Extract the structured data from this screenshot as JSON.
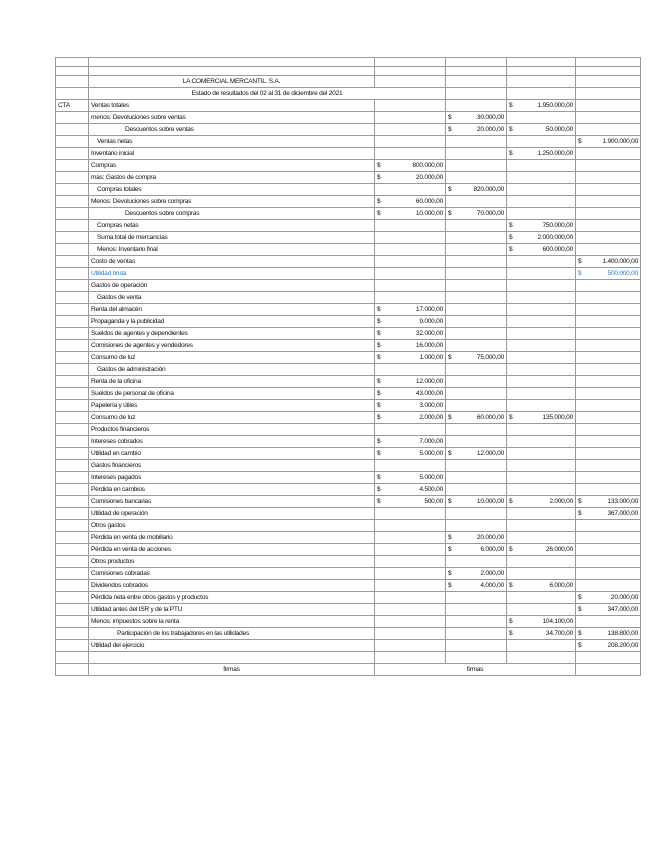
{
  "title": "LA COMERCIAL MERCANTIL. S.A.",
  "subtitle": "Estado de resultados del 02 al 31 de diciembre del 2021",
  "cta_label": "CTA",
  "signature_label": "firmas",
  "accent_color": "#2f7fd0",
  "rows": [
    {
      "label": "Ventas totales",
      "ind": 0,
      "v": [
        "",
        "",
        "1.950.000,00",
        ""
      ]
    },
    {
      "label": "menos: Devoluciones sobre ventas",
      "ind": 0,
      "v": [
        "",
        "30.000,00",
        "",
        ""
      ]
    },
    {
      "label": "Descuentos sobre ventas",
      "ind": 3,
      "v": [
        "",
        "20.000,00",
        "50.000,00",
        ""
      ]
    },
    {
      "label": "Ventas netas",
      "ind": 1,
      "v": [
        "",
        "",
        "",
        "1.900.000,00"
      ]
    },
    {
      "label": "Inventario inicial",
      "ind": 0,
      "v": [
        "",
        "",
        "1.250.000,00",
        ""
      ]
    },
    {
      "label": "Compras",
      "ind": 0,
      "v": [
        "800.000,00",
        "",
        "",
        ""
      ]
    },
    {
      "label": "mas: Gastos de compra",
      "ind": 0,
      "v": [
        "20.000,00",
        "",
        "",
        ""
      ]
    },
    {
      "label": "Compras totales",
      "ind": 1,
      "v": [
        "",
        "820.000,00",
        "",
        ""
      ]
    },
    {
      "label": "Menos: Devoluciones sobre compras",
      "ind": 0,
      "v": [
        "60.000,00",
        "",
        "",
        ""
      ]
    },
    {
      "label": "Descuentos sobre compras",
      "ind": 3,
      "v": [
        "10.000,00",
        "70.000,00",
        "",
        ""
      ]
    },
    {
      "label": "Compras netas",
      "ind": 1,
      "v": [
        "",
        "",
        "750.000,00",
        ""
      ]
    },
    {
      "label": "Suma total de mercancías",
      "ind": 1,
      "v": [
        "",
        "",
        "2.000.000,00",
        ""
      ]
    },
    {
      "label": "Menos: Inventario final",
      "ind": 1,
      "v": [
        "",
        "",
        "600.000,00",
        ""
      ]
    },
    {
      "label": "Costo de ventas",
      "ind": 0,
      "v": [
        "",
        "",
        "",
        "1.400.000,00"
      ]
    },
    {
      "label": "Utilidad bruta",
      "ind": 0,
      "blue": true,
      "v": [
        "",
        "",
        "",
        "500.000,00"
      ]
    },
    {
      "label": "Gastos de operación",
      "ind": 0,
      "v": [
        "",
        "",
        "",
        ""
      ]
    },
    {
      "label": "Gastos de venta",
      "ind": 1,
      "v": [
        "",
        "",
        "",
        ""
      ]
    },
    {
      "label": "Renta del almacén",
      "ind": 0,
      "v": [
        "17.000,00",
        "",
        "",
        ""
      ]
    },
    {
      "label": "Propaganda y la publicidad",
      "ind": 0,
      "v": [
        "9.000,00",
        "",
        "",
        ""
      ]
    },
    {
      "label": "Sueldos de agentes y dependientes",
      "ind": 0,
      "v": [
        "32.000,00",
        "",
        "",
        ""
      ]
    },
    {
      "label": "Comisiones de agentes y vendedores",
      "ind": 0,
      "v": [
        "16.000,00",
        "",
        "",
        ""
      ]
    },
    {
      "label": "Consumo de luz",
      "ind": 0,
      "v": [
        "1.000,00",
        "75.000,00",
        "",
        ""
      ]
    },
    {
      "label": "Gastos de administración",
      "ind": 1,
      "v": [
        "",
        "",
        "",
        ""
      ]
    },
    {
      "label": "Renta de la oficina",
      "ind": 0,
      "v": [
        "12.000,00",
        "",
        "",
        ""
      ]
    },
    {
      "label": "Sueldos de personal de oficina",
      "ind": 0,
      "v": [
        "43.000,00",
        "",
        "",
        ""
      ]
    },
    {
      "label": "Papelería y útiles",
      "ind": 0,
      "v": [
        "3.000,00",
        "",
        "",
        ""
      ]
    },
    {
      "label": "Consumo de luz",
      "ind": 0,
      "v": [
        "2.000,00",
        "60.000,00",
        "135.000,00",
        ""
      ]
    },
    {
      "label": "Productos financieros",
      "ind": 0,
      "v": [
        "",
        "",
        "",
        ""
      ]
    },
    {
      "label": "Intereses cobrados",
      "ind": 0,
      "v": [
        "7.000,00",
        "",
        "",
        ""
      ]
    },
    {
      "label": "Utilidad en cambio",
      "ind": 0,
      "v": [
        "5.000,00",
        "12.000,00",
        "",
        ""
      ]
    },
    {
      "label": "Gastos financieros",
      "ind": 0,
      "v": [
        "",
        "",
        "",
        ""
      ]
    },
    {
      "label": "Intereses pagados",
      "ind": 0,
      "v": [
        "5.000,00",
        "",
        "",
        ""
      ]
    },
    {
      "label": "Pérdida en cambios",
      "ind": 0,
      "v": [
        "4.500,00",
        "",
        "",
        ""
      ]
    },
    {
      "label": "Comisiones bancarias",
      "ind": 0,
      "v": [
        "500,00",
        "10.000,00",
        "2.000,00",
        "133.000,00"
      ]
    },
    {
      "label": "Utilidad de operación",
      "ind": 0,
      "v": [
        "",
        "",
        "",
        "367.000,00"
      ]
    },
    {
      "label": "Otros gastos",
      "ind": 0,
      "v": [
        "",
        "",
        "",
        ""
      ]
    },
    {
      "label": "Pérdida en venta de mobiliario",
      "ind": 0,
      "v": [
        "",
        "20.000,00",
        "",
        ""
      ]
    },
    {
      "label": "Pérdida en venta de acciones",
      "ind": 0,
      "v": [
        "",
        "6.000,00",
        "26.000,00",
        ""
      ]
    },
    {
      "label": "Otros productos",
      "ind": 0,
      "v": [
        "",
        "",
        "",
        ""
      ]
    },
    {
      "label": "Comisiones cobradas",
      "ind": 0,
      "v": [
        "",
        "2.000,00",
        "",
        ""
      ]
    },
    {
      "label": "Dividendos cobrados",
      "ind": 0,
      "v": [
        "",
        "4.000,00",
        "6.000,00",
        ""
      ]
    },
    {
      "label": "Pérdida neta entre otros gastos y productos",
      "ind": 0,
      "v": [
        "",
        "",
        "",
        "20.000,00"
      ]
    },
    {
      "label": "Utilidad antes del ISR y de la PTU",
      "ind": 0,
      "v": [
        "",
        "",
        "",
        "347.000,00"
      ]
    },
    {
      "label": "Menos: impuestos sobre la renta",
      "ind": 0,
      "v": [
        "",
        "",
        "104.100,00",
        ""
      ]
    },
    {
      "label": "Participación de los trabajadores en las utilidades",
      "ind": 4,
      "v": [
        "",
        "",
        "34.700,00",
        "138.800,00"
      ]
    },
    {
      "label": "Utilidad del ejercicio",
      "ind": 0,
      "v": [
        "",
        "",
        "",
        "208.200,00"
      ]
    }
  ]
}
